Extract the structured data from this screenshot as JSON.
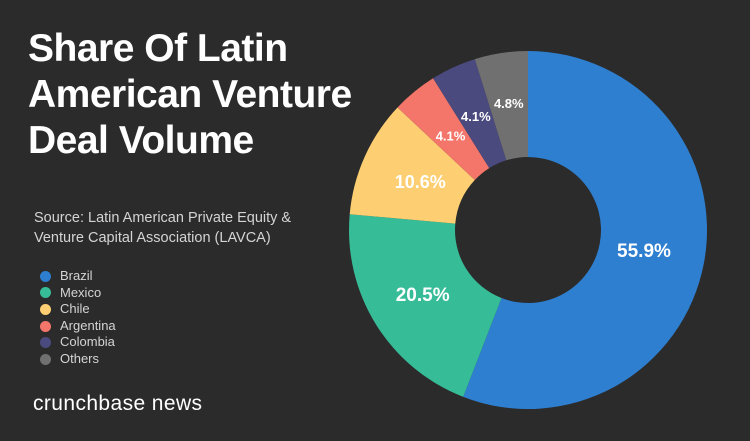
{
  "title_lines": [
    "Share Of Latin",
    "American Venture",
    "Deal Volume"
  ],
  "source_lines": [
    "Source: Latin American Private Equity &",
    "Venture Capital Association (LAVCA)"
  ],
  "brand": "crunchbase news",
  "chart_data": {
    "type": "pie",
    "title": "Share Of Latin American Venture Deal Volume",
    "subtitle": "Source: Latin American Private Equity & Venture Capital Association (LAVCA)",
    "legend_position": "left",
    "donut": true,
    "categories": [
      "Brazil",
      "Mexico",
      "Chile",
      "Argentina",
      "Colombia",
      "Others"
    ],
    "values": [
      55.9,
      20.5,
      10.6,
      4.1,
      4.1,
      4.8
    ],
    "labels": [
      "55.9%",
      "20.5%",
      "10.6%",
      "4.1%",
      "4.1%",
      "4.8%"
    ],
    "colors": [
      "#2f7fd0",
      "#37bc98",
      "#fdcf72",
      "#f4766b",
      "#4a4a7e",
      "#707070"
    ]
  }
}
